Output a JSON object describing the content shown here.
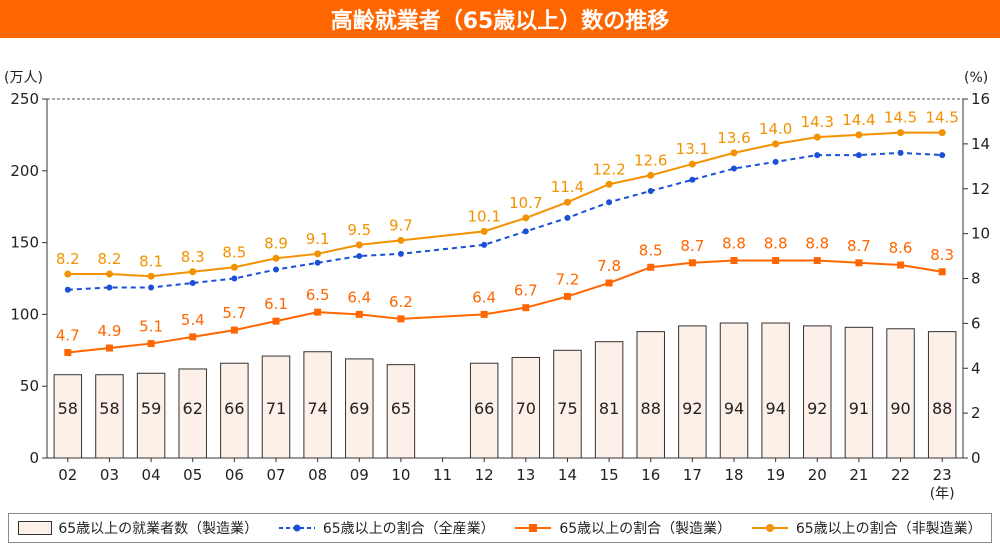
{
  "title": "高齢就業者（65歳以上）数の推移",
  "chart_data": {
    "type": "bar+line",
    "title": "高齢就業者（65歳以上）数の推移",
    "y_left_label": "(万人)",
    "y_right_label": "(%)",
    "x_unit_label": "(年)",
    "ylim_left": [
      0,
      250
    ],
    "ylim_right": [
      0,
      16
    ],
    "left_ticks": [
      0,
      50,
      100,
      150,
      200,
      250
    ],
    "right_ticks": [
      0,
      2,
      4,
      6,
      8,
      10,
      12,
      14,
      16
    ],
    "categories": [
      "02",
      "03",
      "04",
      "05",
      "06",
      "07",
      "08",
      "09",
      "10",
      "11",
      "12",
      "13",
      "14",
      "15",
      "16",
      "17",
      "18",
      "19",
      "20",
      "21",
      "22",
      "23"
    ],
    "series": [
      {
        "name": "65歳以上の就業者数（製造業）",
        "kind": "bar",
        "axis": "left",
        "color": "#fdf0e8",
        "values": [
          58,
          58,
          59,
          62,
          66,
          71,
          74,
          69,
          65,
          null,
          66,
          70,
          75,
          81,
          88,
          92,
          94,
          94,
          92,
          91,
          90,
          88
        ]
      },
      {
        "name": "65歳以上の割合（全産業）",
        "kind": "line-dashed",
        "axis": "right",
        "color": "#1a4fd6",
        "values": [
          7.5,
          7.6,
          7.6,
          7.8,
          8.0,
          8.4,
          8.7,
          9.0,
          9.1,
          null,
          9.5,
          10.1,
          10.7,
          11.4,
          11.9,
          12.4,
          12.9,
          13.2,
          13.5,
          13.5,
          13.6,
          13.5
        ]
      },
      {
        "name": "65歳以上の割合（製造業）",
        "kind": "line-square",
        "axis": "right",
        "color": "#ff6600",
        "values": [
          4.7,
          4.9,
          5.1,
          5.4,
          5.7,
          6.1,
          6.5,
          6.4,
          6.2,
          null,
          6.4,
          6.7,
          7.2,
          7.8,
          8.5,
          8.7,
          8.8,
          8.8,
          8.8,
          8.7,
          8.6,
          8.3
        ]
      },
      {
        "name": "65歳以上の割合（非製造業）",
        "kind": "line-circle",
        "axis": "right",
        "color": "#f39200",
        "values": [
          8.2,
          8.2,
          8.1,
          8.3,
          8.5,
          8.9,
          9.1,
          9.5,
          9.7,
          null,
          10.1,
          10.7,
          11.4,
          12.2,
          12.6,
          13.1,
          13.6,
          14.0,
          14.3,
          14.4,
          14.5,
          14.5
        ]
      }
    ],
    "legend_position": "bottom"
  },
  "legend": [
    {
      "label": "65歳以上の就業者数（製造業）",
      "icon": "bar"
    },
    {
      "label": "65歳以上の割合（全産業）",
      "icon": "dashed-line-dot"
    },
    {
      "label": "65歳以上の割合（製造業）",
      "icon": "line-square"
    },
    {
      "label": "65歳以上の割合（非製造業）",
      "icon": "line-circle"
    }
  ]
}
